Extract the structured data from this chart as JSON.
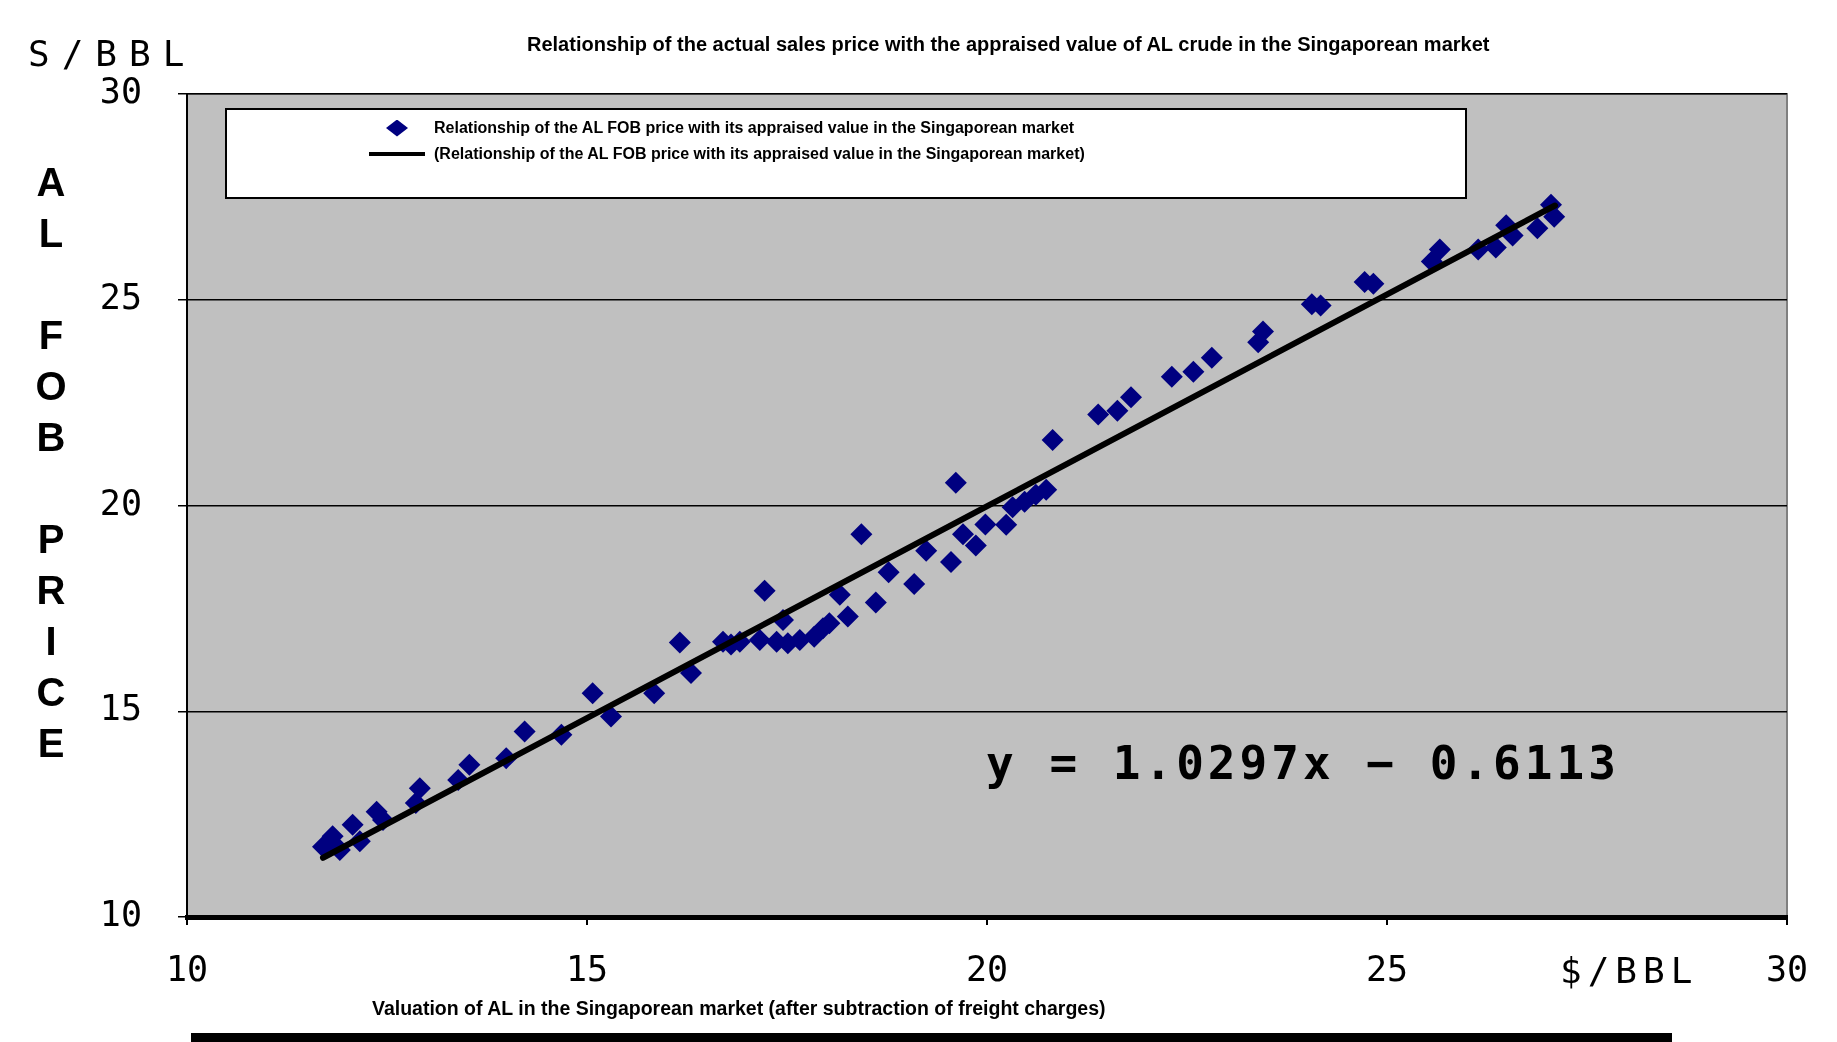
{
  "chart_data": {
    "type": "scatter",
    "title": "Relationship of the actual sales price with the appraised value of AL crude in the Singaporean market",
    "xlabel": "Valuation of AL in the Singaporean market (after subtraction of freight charges)",
    "ylabel": "AL FOB PRICE",
    "annotations": [
      "S/BBL",
      "$/BBL",
      "y = 1.0297x − 0.6113"
    ],
    "xlim": [
      10,
      30
    ],
    "xticks": [
      10,
      15,
      20,
      25,
      30
    ],
    "ylim": [
      10,
      30
    ],
    "yticks": [
      10,
      15,
      20,
      25,
      30
    ],
    "grid": "y",
    "legend": "top",
    "series": [
      {
        "name": "Relationship of the AL FOB price with its appraised value in the Singaporean market",
        "color": "#000080",
        "marker": "diamond",
        "x": [
          11.7,
          11.82,
          11.91,
          12.07,
          12.16,
          12.37,
          12.45,
          12.86,
          12.91,
          13.39,
          13.53,
          13.99,
          14.22,
          14.68,
          15.07,
          15.3,
          15.84,
          16.16,
          16.3,
          16.7,
          16.8,
          16.91,
          17.16,
          17.22,
          17.37,
          17.45,
          17.51,
          17.66,
          17.84,
          17.95,
          18.03,
          18.16,
          18.26,
          18.43,
          18.61,
          18.77,
          19.09,
          19.24,
          19.55,
          19.61,
          19.7,
          19.86,
          19.98,
          20.24,
          20.32,
          20.47,
          20.61,
          20.74,
          20.82,
          21.39,
          21.63,
          21.8,
          22.31,
          22.58,
          22.81,
          23.39,
          23.45,
          24.06,
          24.17,
          24.72,
          24.83,
          25.56,
          25.66,
          26.14,
          26.36,
          26.49,
          26.57,
          26.88,
          27.05,
          27.09
        ],
        "values": [
          11.71,
          11.96,
          11.63,
          12.24,
          11.84,
          12.56,
          12.36,
          12.77,
          13.13,
          13.33,
          13.7,
          13.86,
          14.51,
          14.43,
          15.44,
          14.87,
          15.44,
          16.67,
          15.93,
          16.69,
          16.62,
          16.69,
          16.73,
          17.93,
          16.69,
          17.22,
          16.65,
          16.73,
          16.81,
          17.02,
          17.14,
          17.83,
          17.3,
          19.3,
          17.64,
          18.38,
          18.09,
          18.9,
          18.63,
          20.55,
          19.3,
          19.03,
          19.54,
          19.53,
          19.96,
          20.09,
          20.26,
          20.38,
          21.59,
          22.21,
          22.3,
          22.63,
          23.13,
          23.25,
          23.59,
          23.97,
          24.23,
          24.89,
          24.86,
          25.43,
          25.39,
          25.93,
          26.22,
          26.22,
          26.27,
          26.81,
          26.56,
          26.74,
          27.31,
          27.02
        ]
      },
      {
        "type": "line",
        "name": "(Relationship of the AL FOB price with its appraised value in the Singaporean market)",
        "color": "#000000",
        "marker": "none",
        "line_style": "solid",
        "x": [
          11.7,
          27.1
        ],
        "values": [
          11.44,
          27.29
        ]
      }
    ]
  }
}
